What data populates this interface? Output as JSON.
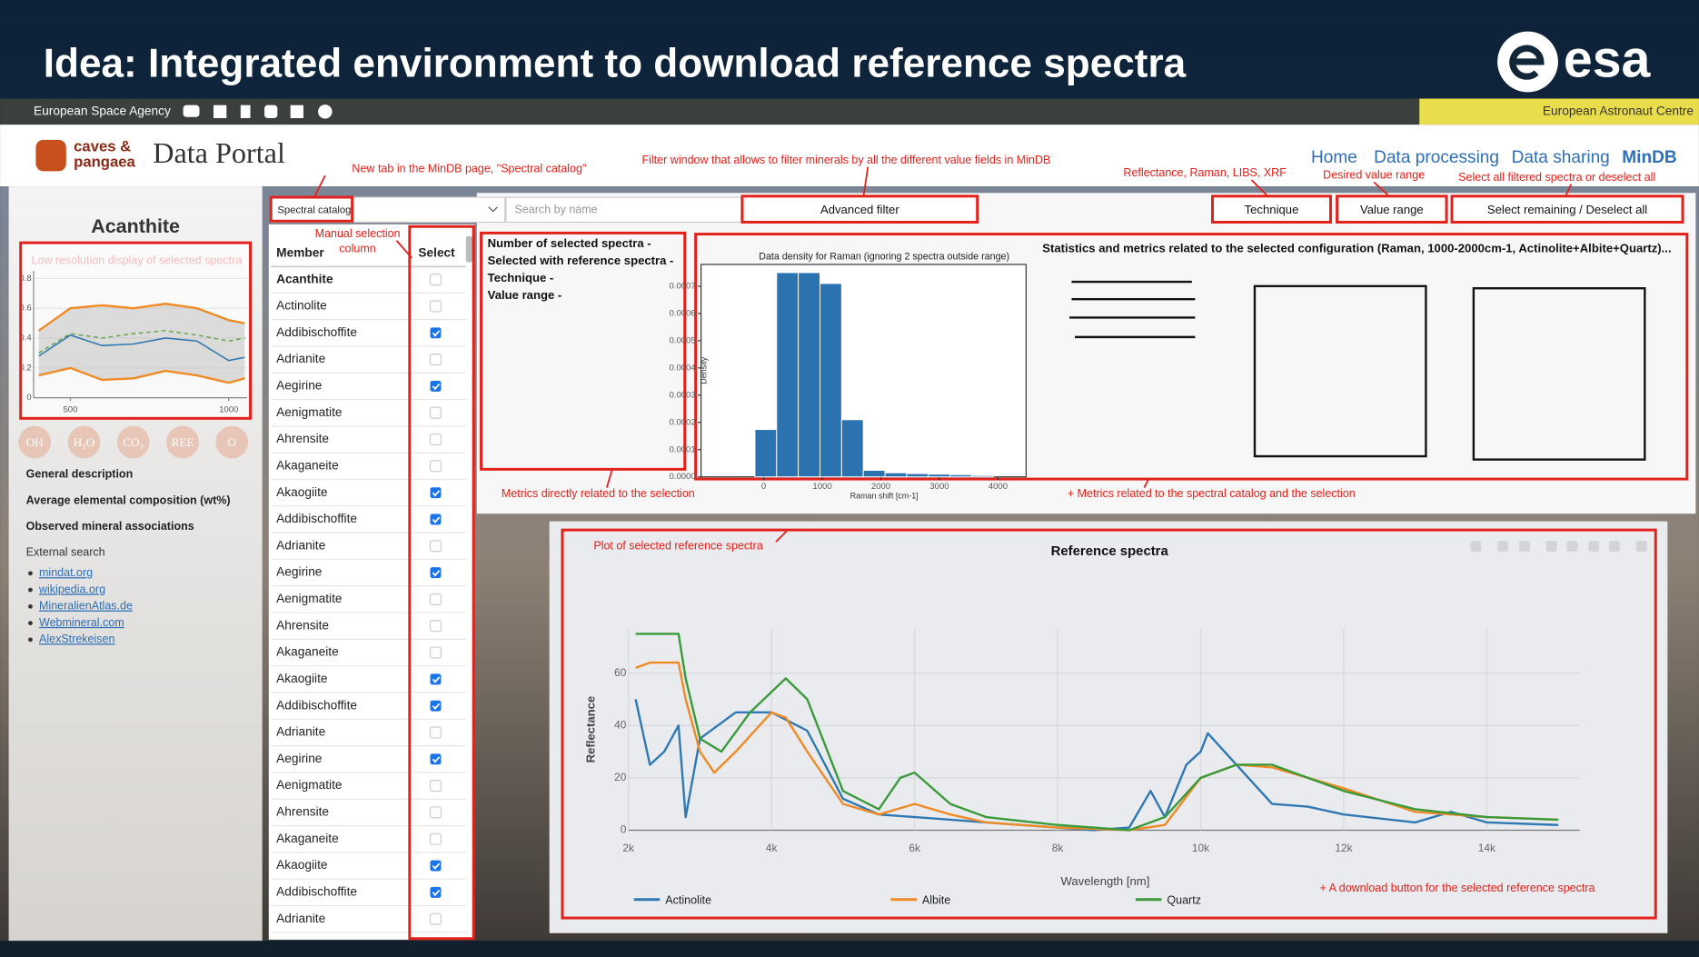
{
  "slide": {
    "title": "Idea: Integrated environment to download reference spectra",
    "logo": "esa",
    "agency": "European Space Agency",
    "centre": "European Astronaut Centre"
  },
  "portal": {
    "brand": [
      "caves &",
      "pangaea"
    ],
    "name": "Data Portal",
    "nav": [
      "Home",
      "Data processing",
      "Data sharing",
      "MinDB"
    ]
  },
  "annotations": [
    "New tab in the MinDB page, \"Spectral catalog\"",
    "Filter window that allows to filter minerals by all the different value fields in MinDB",
    "Reflectance, Raman, LIBS, XRF",
    "Desired value range",
    "Select all filtered spectra or deselect all",
    "Manual selection",
    "column",
    "Low resolution display of selected spectra",
    "Metrics directly related to the selection",
    "+ Metrics related to the spectral catalog and the selection",
    "Plot of selected reference spectra",
    "+ A download button for the selected reference spectra"
  ],
  "sidebar": {
    "mineral": "Acanthite",
    "chips": [
      "OH",
      "H₂O",
      "CO₃",
      "REE",
      "O"
    ],
    "sections": [
      "General description",
      "Average elemental composition (wt%)",
      "Observed mineral associations"
    ],
    "external_title": "External search",
    "links": [
      "mindat.org",
      "wikipedia.org",
      "MineralienAtlas.de",
      "Webmineral.com",
      "AlexStrekeisen"
    ]
  },
  "controls": {
    "catalog": "Spectral catalog",
    "search_placeholder": "Search by name",
    "buttons": [
      "Advanced filter",
      "Technique",
      "Value range",
      "Select remaining / Deselect all"
    ]
  },
  "table": {
    "columns": [
      "Member",
      "Select"
    ],
    "rows": [
      {
        "member": "Acanthite",
        "selected": false
      },
      {
        "member": "Actinolite",
        "selected": false
      },
      {
        "member": "Addibischoffite",
        "selected": true
      },
      {
        "member": "Adrianite",
        "selected": false
      },
      {
        "member": "Aegirine",
        "selected": true
      },
      {
        "member": "Aenigmatite",
        "selected": false
      },
      {
        "member": "Ahrensite",
        "selected": false
      },
      {
        "member": "Akaganeite",
        "selected": false
      },
      {
        "member": "Akaogiite",
        "selected": true
      },
      {
        "member": "Addibischoffite",
        "selected": true
      },
      {
        "member": "Adrianite",
        "selected": false
      },
      {
        "member": "Aegirine",
        "selected": true
      },
      {
        "member": "Aenigmatite",
        "selected": false
      },
      {
        "member": "Ahrensite",
        "selected": false
      },
      {
        "member": "Akaganeite",
        "selected": false
      },
      {
        "member": "Akaogiite",
        "selected": true
      },
      {
        "member": "Addibischoffite",
        "selected": true
      },
      {
        "member": "Adrianite",
        "selected": false
      },
      {
        "member": "Aegirine",
        "selected": true
      },
      {
        "member": "Aenigmatite",
        "selected": false
      },
      {
        "member": "Ahrensite",
        "selected": false
      },
      {
        "member": "Akaganeite",
        "selected": false
      },
      {
        "member": "Akaogiite",
        "selected": true
      },
      {
        "member": "Addibischoffite",
        "selected": true
      },
      {
        "member": "Adrianite",
        "selected": false
      }
    ]
  },
  "metrics": {
    "lines": [
      "Number of selected spectra -",
      "Selected with reference spectra -",
      "Technique -",
      "Value range -"
    ],
    "stats_title": "Statistics and metrics related to the selected configuration (Raman, 1000-2000cm-1, Actinolite+Albite+Quartz)..."
  },
  "chart_data": [
    {
      "type": "line",
      "x": [
        400,
        500,
        600,
        700,
        800,
        900,
        1000,
        1050
      ],
      "xlim": [
        384,
        1058
      ],
      "ylim": [
        0,
        0.85
      ],
      "xticks": [
        500,
        1000
      ],
      "yticks": [
        0,
        0.2,
        0.4,
        0.6,
        0.8
      ],
      "series": [
        {
          "color": "#f08a24",
          "values": [
            0.45,
            0.6,
            0.62,
            0.6,
            0.63,
            0.6,
            0.52,
            0.5
          ]
        },
        {
          "color": "#f08a24",
          "values": [
            0.15,
            0.2,
            0.12,
            0.13,
            0.18,
            0.15,
            0.1,
            0.13
          ]
        },
        {
          "color": "#2f78b4",
          "values": [
            0.28,
            0.42,
            0.35,
            0.36,
            0.4,
            0.38,
            0.25,
            0.27
          ]
        },
        {
          "color": "#6aa84f",
          "dashed": true,
          "values": [
            0.3,
            0.43,
            0.4,
            0.43,
            0.45,
            0.42,
            0.38,
            0.4
          ]
        }
      ]
    },
    {
      "type": "histogram",
      "title": "Data density for Raman (ignoring 2 spectra outside range)",
      "x_label": "Raman shift [cm-1]",
      "y_label": "Density",
      "color": "#2b72b0",
      "bins": [
        -150,
        220,
        590,
        960,
        1330,
        1700,
        2070,
        2440,
        2810,
        3180,
        3550,
        3920
      ],
      "values": [
        0.000174,
        0.00075,
        0.00075,
        0.00071,
        0.00021,
        2.4e-05,
        1.5e-05,
        1.2e-05,
        1e-05,
        8e-06,
        5e-06
      ],
      "xlim": [
        -1070,
        4480
      ],
      "ylim": [
        0,
        0.00078
      ],
      "xticks": [
        0,
        1000,
        2000,
        3000,
        4000
      ],
      "yticks": [
        {
          "value": 0,
          "label": "0.0000"
        },
        0.0001,
        0.0002,
        0.0003,
        0.0004,
        0.0005,
        0.0006,
        0.0007
      ]
    },
    {
      "type": "line",
      "title": "Reference spectra",
      "x_label": "Wavelength [nm]",
      "y_label": "Reflectance",
      "xlim": [
        2000,
        15300
      ],
      "ylim": [
        0,
        77
      ],
      "grid": true,
      "xticks": [
        {
          "value": 2000,
          "label": "2k"
        },
        {
          "value": 4000,
          "label": "4k"
        },
        {
          "value": 6000,
          "label": "6k"
        },
        {
          "value": 8000,
          "label": "8k"
        },
        {
          "value": 10000,
          "label": "10k"
        },
        {
          "value": 12000,
          "label": "12k"
        },
        {
          "value": 14000,
          "label": "14k"
        }
      ],
      "yticks": [
        0,
        20,
        40,
        60
      ],
      "series": [
        {
          "name": "Actinolite",
          "color": "#2f78b4",
          "x": [
            2100,
            2300,
            2500,
            2700,
            2800,
            3000,
            3500,
            4000,
            4500,
            5000,
            5500,
            6000,
            6500,
            7000,
            8000,
            8500,
            9000,
            9300,
            9500,
            9800,
            10000,
            10100,
            10500,
            11000,
            11500,
            12000,
            13000,
            13500,
            14000,
            15000
          ],
          "values": [
            50,
            25,
            30,
            40,
            5,
            35,
            45,
            45,
            38,
            12,
            6,
            5,
            4,
            3,
            1,
            0,
            1,
            15,
            5,
            25,
            30,
            37,
            25,
            10,
            9,
            6,
            3,
            7,
            3,
            2
          ]
        },
        {
          "name": "Albite",
          "color": "#f08a24",
          "x": [
            2100,
            2300,
            2700,
            2800,
            3000,
            3200,
            3500,
            4000,
            4200,
            4500,
            5000,
            5500,
            6000,
            6500,
            7000,
            8000,
            9000,
            9500,
            10000,
            10500,
            11000,
            12000,
            13000,
            14000,
            15000
          ],
          "values": [
            62,
            64,
            64,
            50,
            30,
            22,
            30,
            45,
            43,
            30,
            10,
            6,
            10,
            6,
            3,
            1,
            0,
            2,
            20,
            25,
            24,
            16,
            7,
            5,
            4
          ]
        },
        {
          "name": "Quartz",
          "color": "#3a9a3a",
          "x": [
            2100,
            2700,
            2800,
            3000,
            3300,
            3700,
            4200,
            4500,
            5000,
            5500,
            5800,
            6000,
            6500,
            7000,
            8000,
            9000,
            9500,
            10000,
            10500,
            11000,
            12000,
            13000,
            14000,
            15000
          ],
          "values": [
            75,
            75,
            58,
            35,
            30,
            45,
            58,
            50,
            15,
            8,
            20,
            22,
            10,
            5,
            2,
            0,
            5,
            20,
            25,
            25,
            15,
            8,
            5,
            4
          ]
        }
      ]
    }
  ]
}
